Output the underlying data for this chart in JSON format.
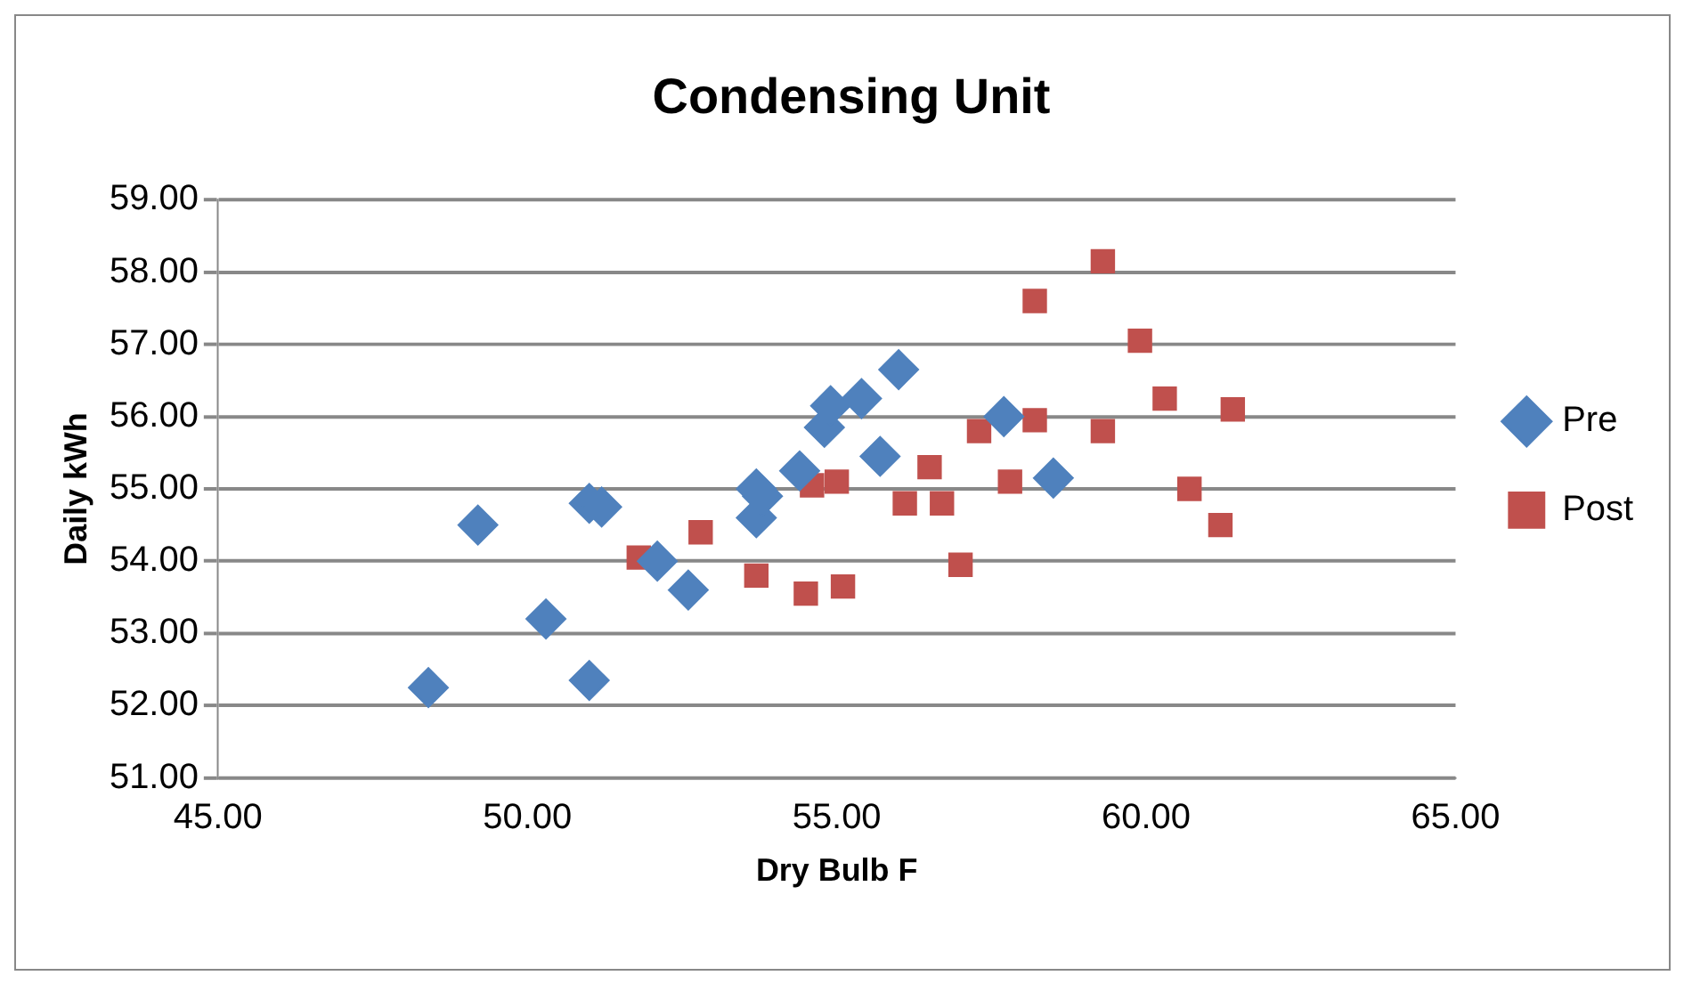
{
  "chart_data": {
    "type": "scatter",
    "title": "Condensing Unit",
    "xlabel": "Dry Bulb F",
    "ylabel": "Daily kWh",
    "xlim": [
      45,
      65
    ],
    "xticks": [
      {
        "value": 45,
        "label": "45.00"
      },
      {
        "value": 50,
        "label": "50.00"
      },
      {
        "value": 55,
        "label": "55.00"
      },
      {
        "value": 60,
        "label": "60.00"
      },
      {
        "value": 65,
        "label": "65.00"
      }
    ],
    "ylim": [
      51,
      59
    ],
    "yticks": [
      {
        "value": 51,
        "label": "51.00"
      },
      {
        "value": 52,
        "label": "52.00"
      },
      {
        "value": 53,
        "label": "53.00"
      },
      {
        "value": 54,
        "label": "54.00"
      },
      {
        "value": 55,
        "label": "55.00"
      },
      {
        "value": 56,
        "label": "56.00"
      },
      {
        "value": 57,
        "label": "57.00"
      },
      {
        "value": 58,
        "label": "58.00"
      },
      {
        "value": 59,
        "label": "59.00"
      }
    ],
    "grid": "y",
    "legend": "right",
    "series": [
      {
        "name": "Pre",
        "color": "#4f81bd",
        "marker": "diamond",
        "x": [
          48.4,
          49.2,
          50.3,
          51.0,
          51.0,
          51.2,
          52.1,
          52.6,
          53.7,
          53.7,
          53.8,
          54.4,
          54.8,
          54.9,
          55.4,
          56.0,
          55.7,
          57.7,
          58.5
        ],
        "values": [
          52.25,
          54.5,
          53.2,
          52.35,
          54.8,
          54.75,
          54.0,
          53.6,
          54.6,
          55.0,
          54.9,
          55.25,
          55.85,
          56.15,
          56.25,
          56.65,
          55.45,
          56.0,
          55.15
        ]
      },
      {
        "name": "Post",
        "color": "#c0504d",
        "marker": "square",
        "x": [
          51.8,
          52.8,
          53.7,
          54.5,
          55.1,
          54.6,
          55.0,
          59.3,
          58.2,
          59.9,
          60.3,
          61.4,
          57.3,
          58.2,
          59.3,
          56.5,
          57.8,
          60.7,
          61.2,
          56.1,
          56.7,
          57.0
        ],
        "values": [
          54.05,
          54.4,
          53.8,
          53.55,
          53.65,
          55.05,
          55.1,
          58.15,
          57.6,
          57.05,
          56.25,
          56.1,
          55.8,
          55.95,
          55.8,
          55.3,
          55.1,
          55.0,
          54.5,
          54.8,
          54.8,
          53.95
        ]
      }
    ]
  }
}
